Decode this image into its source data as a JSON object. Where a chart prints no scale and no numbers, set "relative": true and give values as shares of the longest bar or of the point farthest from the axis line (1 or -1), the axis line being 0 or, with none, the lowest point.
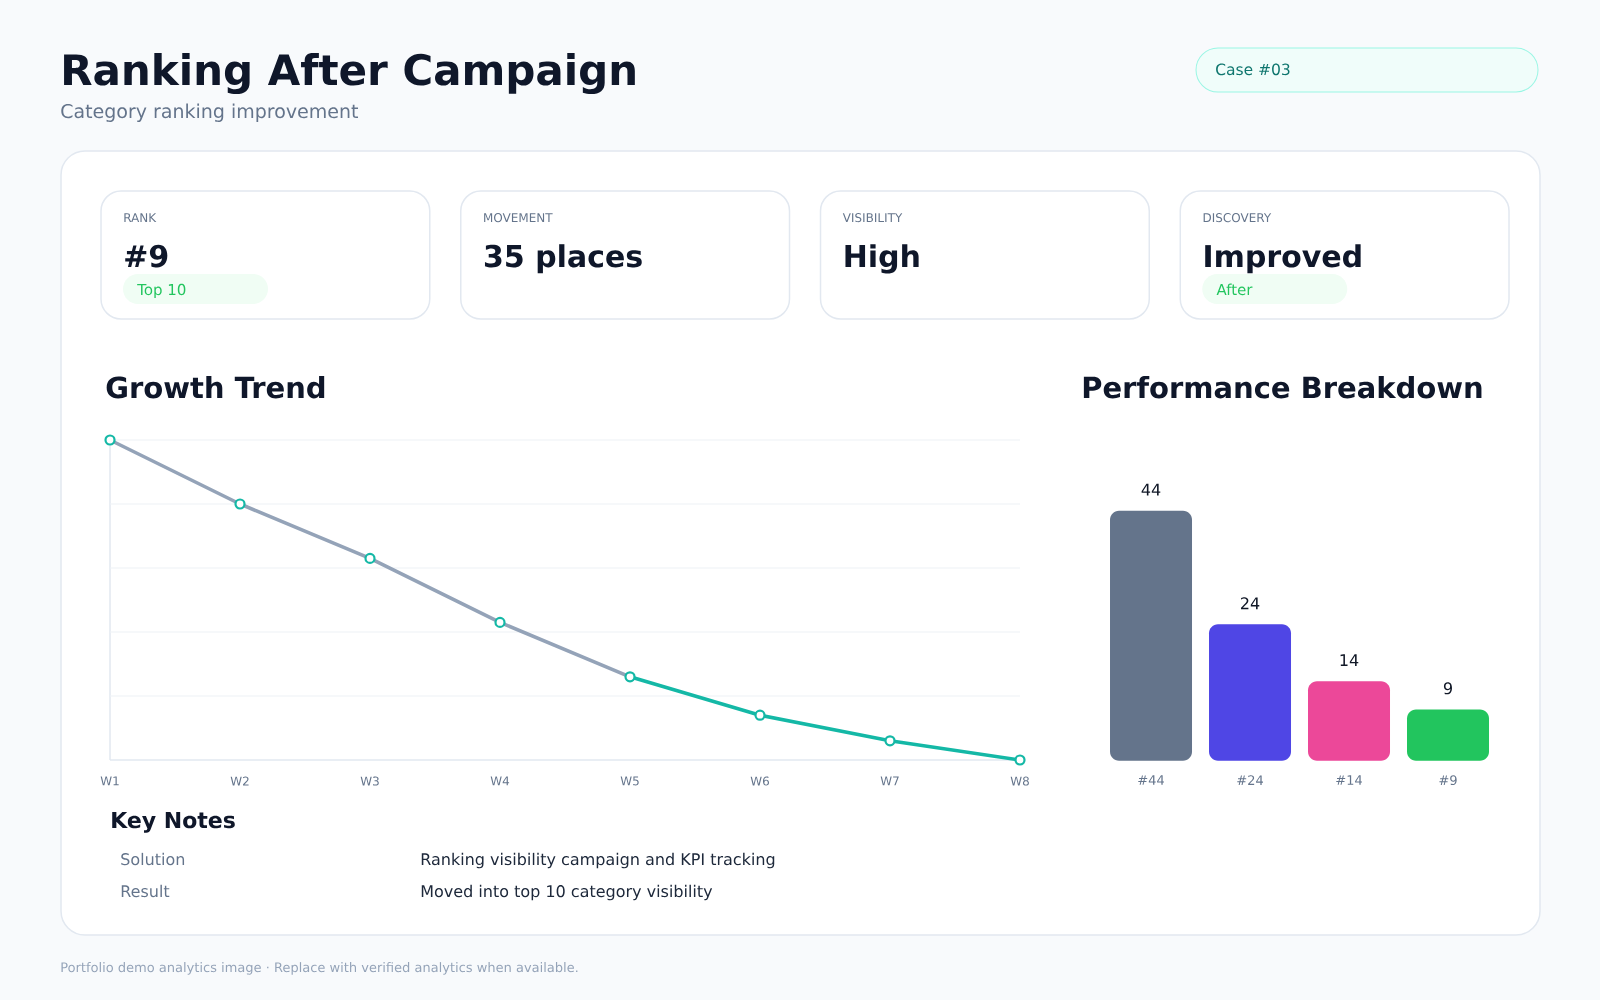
{
  "chart_data": [
    {
      "type": "other",
      "title": "Ranking After Campaign",
      "subtitle": "Category ranking improvement",
      "categories": [
        "RANK",
        "MOVEMENT",
        "VISIBILITY",
        "DISCOVERY"
      ],
      "value_labels": [
        "#9",
        "35 places",
        "High",
        "Improved"
      ],
      "annotations": [
        "Case #03",
        {
          "text": "Top 10",
          "x": "RANK"
        },
        {
          "text": "After",
          "x": "DISCOVERY"
        }
      ]
    },
    {
      "type": "line",
      "title": "Growth Trend",
      "categories": [
        "W1",
        "W2",
        "W3",
        "W4",
        "W5",
        "W6",
        "W7",
        "W8"
      ],
      "relative": true,
      "grid": "y",
      "series": [
        {
          "color": "#94a3b8",
          "values": [
            1,
            0.8,
            0.63,
            0.43,
            0.26,
            null,
            null,
            null
          ]
        },
        {
          "color": "#14b8a6",
          "values": [
            null,
            null,
            null,
            null,
            0.26,
            0.14,
            0.06,
            0
          ]
        },
        {
          "type": "scatter",
          "color": "#14b8a6",
          "marker": "circle",
          "values": [
            1,
            0.8,
            0.63,
            0.43,
            0.26,
            0.14,
            0.06,
            0
          ]
        }
      ]
    },
    {
      "type": "bar",
      "title": "Performance Breakdown",
      "categories": [
        "#44",
        "#24",
        "#14",
        "#9"
      ],
      "values": [
        44,
        24,
        14,
        9
      ],
      "colors": [
        "#64748b",
        "#4f46e5",
        "#ec4899",
        "#22c55e"
      ],
      "data_labels": true
    },
    {
      "type": "other",
      "title": "Key Notes",
      "categories": [
        "Solution",
        "Result"
      ],
      "value_labels": [
        "Ranking visibility campaign and KPI tracking",
        "Moved into top 10 category visibility"
      ],
      "annotations": [
        "Portfolio demo analytics image · Replace with verified analytics when available."
      ]
    }
  ]
}
